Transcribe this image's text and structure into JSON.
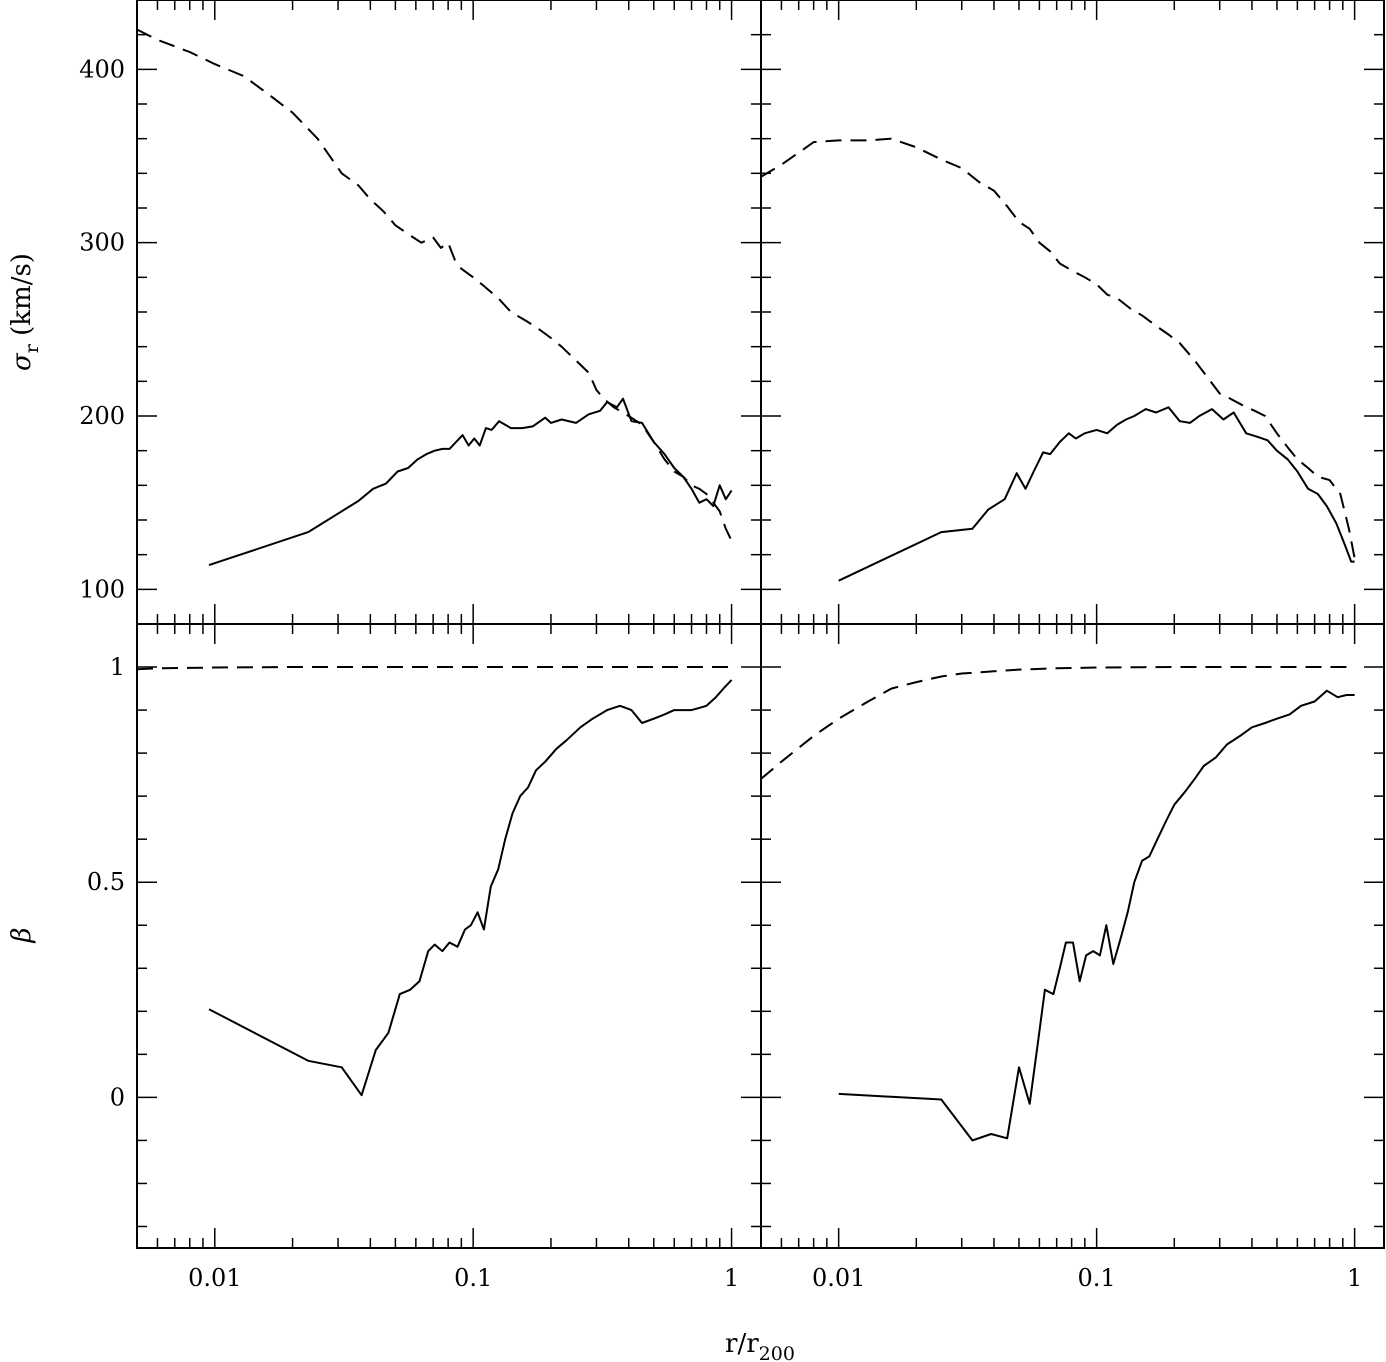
{
  "chart_data": [
    {
      "panel": "top-left",
      "type": "line",
      "xscale": "log",
      "xlim": [
        0.005,
        1.3
      ],
      "ylim": [
        80,
        440
      ],
      "xticks": [
        "0.01",
        "0.1",
        "1"
      ],
      "yticks": [
        "100",
        "200",
        "300",
        "400"
      ],
      "ylabel": "σr (km/s)",
      "series": [
        {
          "style": "solid",
          "x": [
            0.0095,
            0.023,
            0.031,
            0.036,
            0.041,
            0.046,
            0.051,
            0.056,
            0.061,
            0.066,
            0.071,
            0.076,
            0.081,
            0.091,
            0.096,
            0.101,
            0.106,
            0.112,
            0.118,
            0.126,
            0.133,
            0.14,
            0.155,
            0.17,
            0.19,
            0.2,
            0.22,
            0.25,
            0.28,
            0.31,
            0.33,
            0.36,
            0.38,
            0.41,
            0.45,
            0.5,
            0.55,
            0.6,
            0.65,
            0.7,
            0.75,
            0.8,
            0.85,
            0.9,
            0.95,
            1.0
          ],
          "y": [
            114,
            133,
            145,
            151,
            158,
            161,
            168,
            170,
            175,
            178,
            180,
            181,
            181,
            189,
            183,
            187,
            183,
            193,
            192,
            197,
            195,
            193,
            193,
            194,
            199,
            196,
            198,
            196,
            201,
            203,
            208,
            205,
            210,
            197,
            196,
            185,
            178,
            170,
            165,
            158,
            150,
            152,
            148,
            160,
            152,
            157
          ]
        },
        {
          "style": "dashed",
          "x": [
            0.005,
            0.006,
            0.008,
            0.01,
            0.013,
            0.016,
            0.02,
            0.025,
            0.031,
            0.036,
            0.04,
            0.045,
            0.05,
            0.056,
            0.063,
            0.07,
            0.075,
            0.08,
            0.085,
            0.09,
            0.1,
            0.11,
            0.125,
            0.14,
            0.16,
            0.18,
            0.2,
            0.22,
            0.25,
            0.28,
            0.3,
            0.32,
            0.35,
            0.4,
            0.45,
            0.5,
            0.55,
            0.6,
            0.65,
            0.7,
            0.75,
            0.8,
            0.85,
            0.9,
            0.95,
            1.0
          ],
          "y": [
            423,
            417,
            410,
            403,
            396,
            386,
            375,
            360,
            340,
            333,
            325,
            318,
            310,
            305,
            300,
            303,
            297,
            300,
            290,
            285,
            280,
            275,
            268,
            260,
            255,
            250,
            245,
            240,
            232,
            225,
            215,
            210,
            205,
            200,
            195,
            185,
            175,
            168,
            165,
            160,
            158,
            155,
            150,
            145,
            135,
            128
          ]
        }
      ]
    },
    {
      "panel": "top-right",
      "type": "line",
      "xscale": "log",
      "xlim": [
        0.005,
        1.3
      ],
      "ylim": [
        80,
        440
      ],
      "xticks": [
        "0.01",
        "0.1",
        "1"
      ],
      "series": [
        {
          "style": "solid",
          "x": [
            0.01,
            0.025,
            0.033,
            0.038,
            0.044,
            0.049,
            0.053,
            0.057,
            0.062,
            0.066,
            0.072,
            0.078,
            0.083,
            0.09,
            0.1,
            0.11,
            0.12,
            0.13,
            0.14,
            0.155,
            0.17,
            0.19,
            0.21,
            0.23,
            0.25,
            0.28,
            0.31,
            0.34,
            0.38,
            0.42,
            0.46,
            0.5,
            0.55,
            0.6,
            0.66,
            0.72,
            0.78,
            0.85,
            0.92,
            0.97,
            1.0
          ],
          "y": [
            105,
            133,
            135,
            146,
            152,
            167,
            158,
            168,
            179,
            178,
            185,
            190,
            187,
            190,
            192,
            190,
            195,
            198,
            200,
            204,
            202,
            205,
            197,
            196,
            200,
            204,
            198,
            202,
            190,
            188,
            186,
            180,
            175,
            168,
            158,
            155,
            148,
            138,
            125,
            116,
            116
          ]
        },
        {
          "style": "dashed",
          "x": [
            0.005,
            0.006,
            0.008,
            0.01,
            0.013,
            0.016,
            0.02,
            0.025,
            0.03,
            0.035,
            0.04,
            0.045,
            0.05,
            0.055,
            0.06,
            0.066,
            0.072,
            0.08,
            0.09,
            0.1,
            0.11,
            0.12,
            0.135,
            0.15,
            0.17,
            0.19,
            0.21,
            0.24,
            0.27,
            0.3,
            0.33,
            0.37,
            0.41,
            0.45,
            0.5,
            0.55,
            0.6,
            0.66,
            0.72,
            0.8,
            0.88,
            0.95,
            1.0
          ],
          "y": [
            338,
            345,
            358,
            359,
            359,
            360,
            355,
            348,
            343,
            335,
            330,
            321,
            312,
            308,
            300,
            295,
            288,
            284,
            280,
            276,
            270,
            268,
            262,
            258,
            252,
            247,
            242,
            232,
            222,
            213,
            210,
            206,
            203,
            200,
            190,
            182,
            175,
            170,
            165,
            163,
            155,
            135,
            118
          ]
        }
      ]
    },
    {
      "panel": "bottom-left",
      "type": "line",
      "xscale": "log",
      "xlim": [
        0.005,
        1.3
      ],
      "ylim": [
        -0.35,
        1.1
      ],
      "xticks": [
        "0.01",
        "0.1",
        "1"
      ],
      "yticks": [
        "0",
        "0.5",
        "1"
      ],
      "ylabel": "β",
      "series": [
        {
          "style": "solid",
          "x": [
            0.0095,
            0.023,
            0.031,
            0.037,
            0.042,
            0.047,
            0.052,
            0.057,
            0.062,
            0.067,
            0.071,
            0.076,
            0.081,
            0.087,
            0.093,
            0.098,
            0.104,
            0.11,
            0.117,
            0.125,
            0.133,
            0.142,
            0.152,
            0.163,
            0.175,
            0.19,
            0.21,
            0.23,
            0.26,
            0.29,
            0.33,
            0.37,
            0.41,
            0.45,
            0.5,
            0.55,
            0.6,
            0.65,
            0.7,
            0.75,
            0.8,
            0.87,
            0.93,
            1.0
          ],
          "y": [
            0.205,
            0.085,
            0.07,
            0.005,
            0.11,
            0.15,
            0.24,
            0.25,
            0.27,
            0.34,
            0.355,
            0.34,
            0.36,
            0.35,
            0.39,
            0.4,
            0.43,
            0.39,
            0.49,
            0.53,
            0.6,
            0.66,
            0.7,
            0.72,
            0.76,
            0.78,
            0.81,
            0.83,
            0.86,
            0.88,
            0.9,
            0.91,
            0.9,
            0.87,
            0.88,
            0.89,
            0.9,
            0.9,
            0.9,
            0.905,
            0.91,
            0.93,
            0.95,
            0.97
          ]
        },
        {
          "style": "dashed",
          "x": [
            0.005,
            0.006,
            0.008,
            0.01,
            0.02,
            0.05,
            0.1,
            0.2,
            0.5,
            1.0
          ],
          "y": [
            0.995,
            0.997,
            0.998,
            0.999,
            1.0,
            1.0,
            1.0,
            1.0,
            1.0,
            1.0
          ]
        }
      ]
    },
    {
      "panel": "bottom-right",
      "type": "line",
      "xscale": "log",
      "xlim": [
        0.005,
        1.3
      ],
      "ylim": [
        -0.35,
        1.1
      ],
      "xticks": [
        "0.01",
        "0.1",
        "1"
      ],
      "series": [
        {
          "style": "solid",
          "x": [
            0.01,
            0.025,
            0.033,
            0.039,
            0.045,
            0.05,
            0.055,
            0.059,
            0.063,
            0.068,
            0.072,
            0.076,
            0.081,
            0.086,
            0.091,
            0.097,
            0.103,
            0.109,
            0.116,
            0.124,
            0.132,
            0.14,
            0.15,
            0.16,
            0.172,
            0.185,
            0.2,
            0.22,
            0.24,
            0.26,
            0.29,
            0.32,
            0.36,
            0.4,
            0.45,
            0.5,
            0.56,
            0.62,
            0.7,
            0.78,
            0.86,
            0.93,
            1.0
          ],
          "y": [
            0.008,
            -0.005,
            -0.1,
            -0.085,
            -0.095,
            0.07,
            -0.015,
            0.12,
            0.25,
            0.24,
            0.3,
            0.36,
            0.36,
            0.27,
            0.33,
            0.34,
            0.33,
            0.4,
            0.31,
            0.37,
            0.43,
            0.5,
            0.55,
            0.56,
            0.6,
            0.64,
            0.68,
            0.71,
            0.74,
            0.77,
            0.79,
            0.82,
            0.84,
            0.86,
            0.87,
            0.88,
            0.89,
            0.91,
            0.92,
            0.945,
            0.93,
            0.935,
            0.935
          ]
        },
        {
          "style": "dashed",
          "x": [
            0.005,
            0.006,
            0.008,
            0.01,
            0.013,
            0.016,
            0.02,
            0.025,
            0.03,
            0.04,
            0.05,
            0.07,
            0.1,
            0.2,
            0.5,
            1.0
          ],
          "y": [
            0.74,
            0.78,
            0.84,
            0.88,
            0.92,
            0.95,
            0.965,
            0.978,
            0.985,
            0.99,
            0.994,
            0.997,
            0.999,
            1.0,
            1.0,
            1.0
          ]
        }
      ]
    }
  ],
  "figure": {
    "xlabel_main": "r/r",
    "xlabel_sub": "200",
    "ylabel_top_main": "σ",
    "ylabel_top_sub": "r",
    "ylabel_top_rest": " (km/s)",
    "ylabel_bottom": "β"
  }
}
